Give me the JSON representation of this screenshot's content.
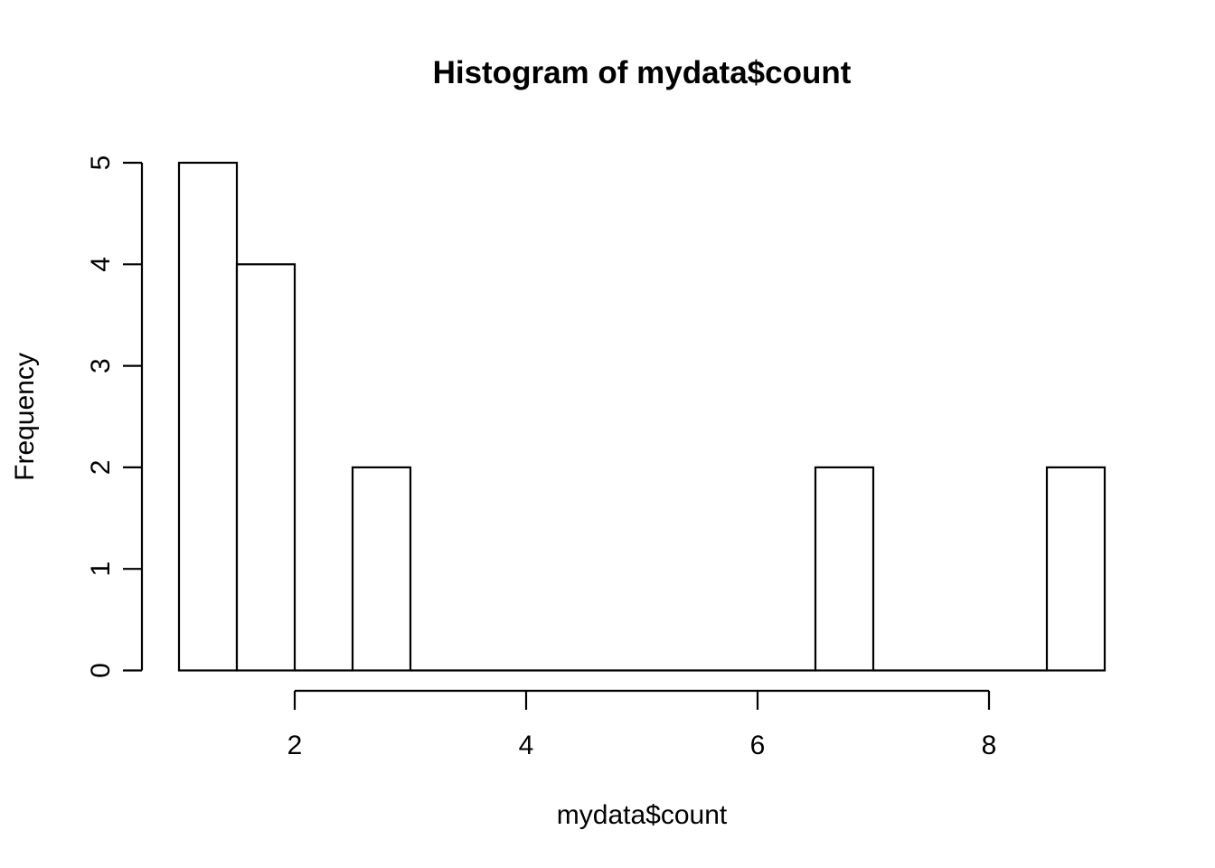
{
  "chart_data": {
    "type": "bar",
    "subtype": "histogram",
    "title": "Histogram of mydata$count",
    "xlabel": "mydata$count",
    "ylabel": "Frequency",
    "bins": [
      {
        "start": 1.0,
        "end": 1.5,
        "count": 5
      },
      {
        "start": 1.5,
        "end": 2.0,
        "count": 4
      },
      {
        "start": 2.0,
        "end": 2.5,
        "count": 0
      },
      {
        "start": 2.5,
        "end": 3.0,
        "count": 2
      },
      {
        "start": 3.0,
        "end": 3.5,
        "count": 0
      },
      {
        "start": 3.5,
        "end": 4.0,
        "count": 0
      },
      {
        "start": 4.0,
        "end": 4.5,
        "count": 0
      },
      {
        "start": 4.5,
        "end": 5.0,
        "count": 0
      },
      {
        "start": 5.0,
        "end": 5.5,
        "count": 0
      },
      {
        "start": 5.5,
        "end": 6.0,
        "count": 0
      },
      {
        "start": 6.0,
        "end": 6.5,
        "count": 0
      },
      {
        "start": 6.5,
        "end": 7.0,
        "count": 2
      },
      {
        "start": 7.0,
        "end": 7.5,
        "count": 0
      },
      {
        "start": 7.5,
        "end": 8.0,
        "count": 0
      },
      {
        "start": 8.0,
        "end": 8.5,
        "count": 0
      },
      {
        "start": 8.5,
        "end": 9.0,
        "count": 2
      }
    ],
    "xlim": [
      1,
      9
    ],
    "ylim": [
      0,
      5
    ],
    "x_ticks": [
      2,
      4,
      6,
      8
    ],
    "y_ticks": [
      0,
      1,
      2,
      3,
      4,
      5
    ],
    "grid": false,
    "bar_fill": "#ffffff",
    "bar_stroke": "#000000"
  }
}
